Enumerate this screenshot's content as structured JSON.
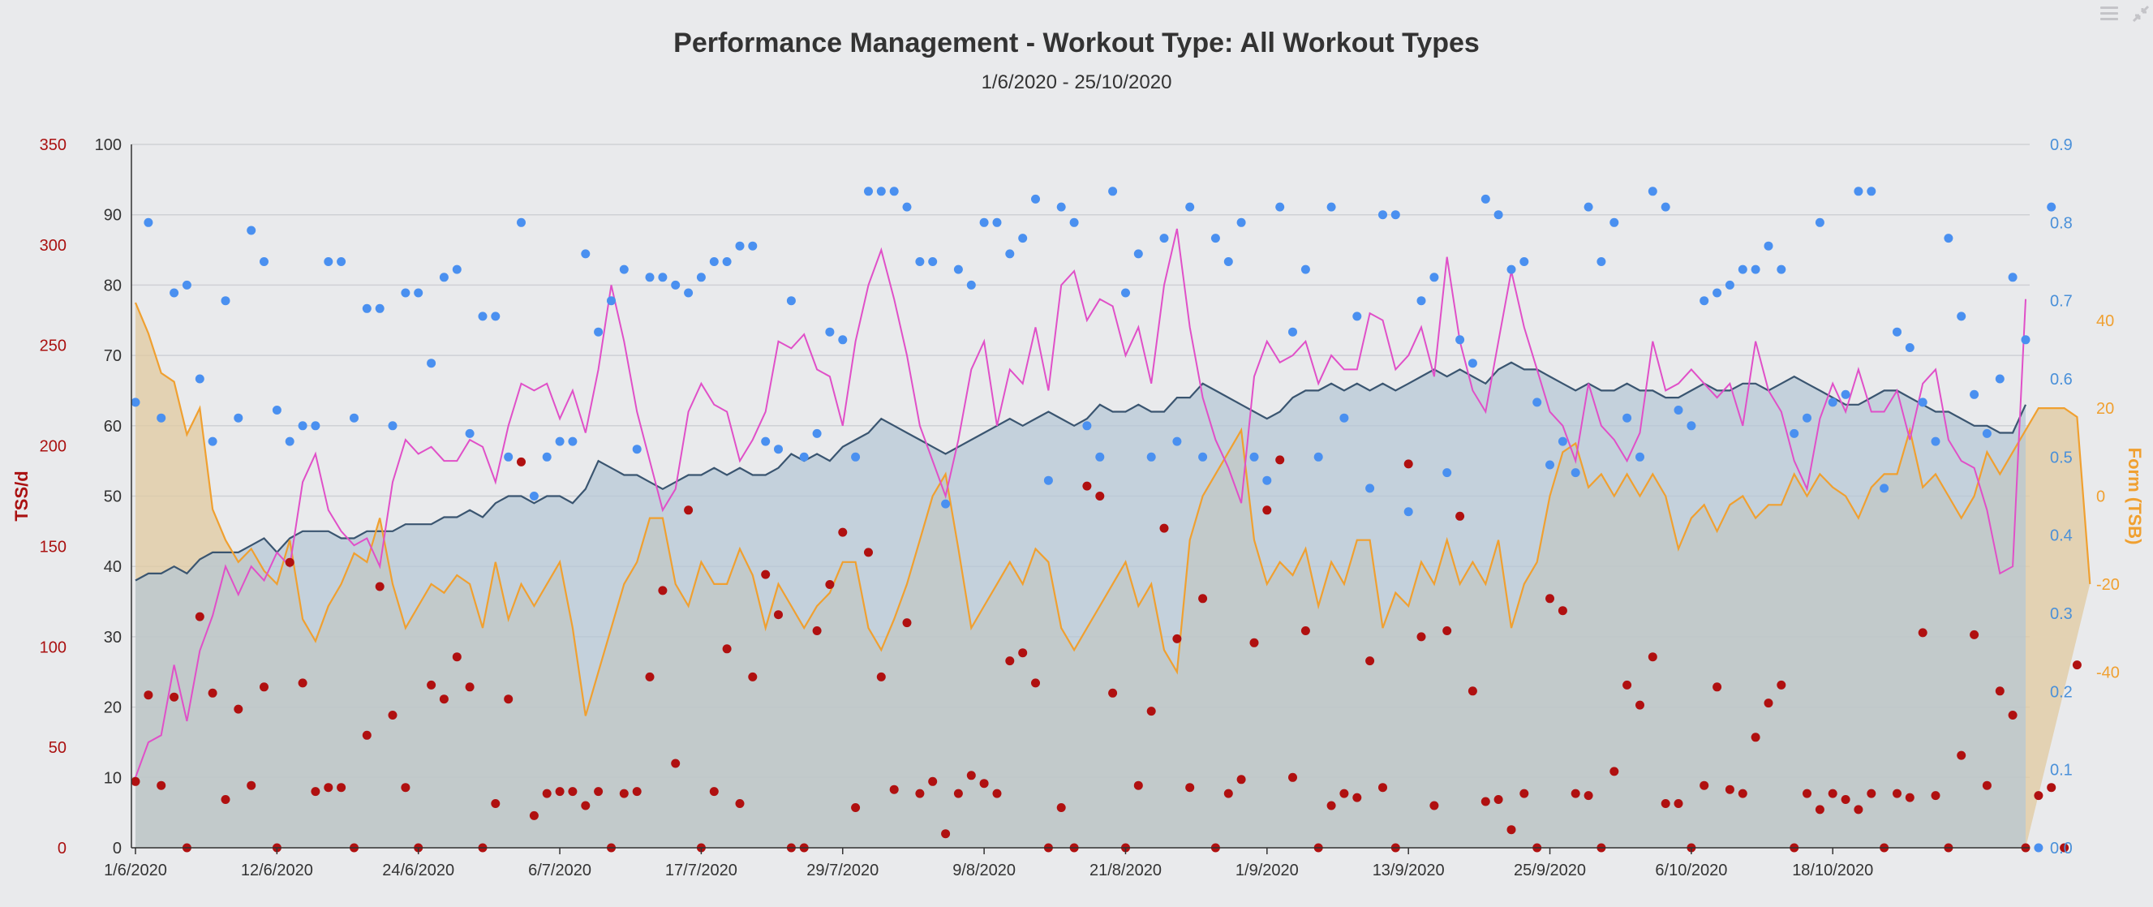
{
  "header": {
    "title": "Performance Management - Workout Type: All Workout Types",
    "subtitle": "1/6/2020 - 25/10/2020",
    "menu_icon": "hamburger-menu-icon",
    "expand_icon": "collapse-arrows-icon"
  },
  "chart_data": {
    "type": "line",
    "x_labels": [
      "1/6/2020",
      "12/6/2020",
      "24/6/2020",
      "6/7/2020",
      "17/7/2020",
      "29/7/2020",
      "9/8/2020",
      "21/8/2020",
      "1/9/2020",
      "13/9/2020",
      "25/9/2020",
      "6/10/2020",
      "18/10/2020"
    ],
    "x_range_days": [
      0,
      147
    ],
    "axes": {
      "tss": {
        "label": "TSS/d",
        "ticks": [
          "0",
          "50",
          "100",
          "150",
          "200",
          "250",
          "300",
          "350"
        ],
        "range": [
          0,
          350
        ],
        "color": "#aa1111"
      },
      "main": {
        "ticks": [
          "0",
          "10",
          "20",
          "30",
          "40",
          "50",
          "60",
          "70",
          "80",
          "90",
          "100"
        ],
        "range": [
          0,
          100
        ],
        "color": "#333333"
      },
      "if": {
        "ticks": [
          "0.0",
          "0.1",
          "0.2",
          "0.3",
          "0.4",
          "0.5",
          "0.6",
          "0.7",
          "0.8",
          "0.9"
        ],
        "range": [
          0,
          0.9
        ],
        "color": "#4a90d9"
      },
      "form": {
        "label": "Form (TSB)",
        "ticks": [
          "-40",
          "-20",
          "0",
          "20",
          "40"
        ],
        "range": [
          -80,
          80
        ],
        "color": "#f0a030"
      }
    },
    "colors": {
      "ctl_fill": "#b4c6d6",
      "ctl_line": "#3a5570",
      "form_fill": "#e0c9a0",
      "form_line": "#f0a030",
      "atl_line": "#e050c8",
      "tss_dot": "#b01010",
      "if_dot": "#4a90f0"
    },
    "grid": true,
    "fitness_ctl": [
      38,
      39,
      39,
      40,
      39,
      41,
      42,
      42,
      42,
      43,
      44,
      42,
      44,
      45,
      45,
      45,
      44,
      44,
      45,
      45,
      45,
      46,
      46,
      46,
      47,
      47,
      48,
      47,
      49,
      50,
      50,
      49,
      50,
      50,
      49,
      51,
      55,
      54,
      53,
      53,
      52,
      51,
      52,
      53,
      53,
      54,
      53,
      54,
      53,
      53,
      54,
      56,
      55,
      56,
      55,
      57,
      58,
      59,
      61,
      60,
      59,
      58,
      57,
      56,
      57,
      58,
      59,
      60,
      61,
      60,
      61,
      62,
      61,
      60,
      61,
      63,
      62,
      62,
      63,
      62,
      62,
      64,
      64,
      66,
      65,
      64,
      63,
      62,
      61,
      62,
      64,
      65,
      65,
      66,
      65,
      66,
      65,
      66,
      65,
      66,
      67,
      68,
      67,
      68,
      67,
      66,
      68,
      69,
      68,
      68,
      67,
      66,
      65,
      66,
      65,
      65,
      66,
      65,
      65,
      64,
      64,
      65,
      66,
      65,
      65,
      66,
      66,
      65,
      66,
      67,
      66,
      65,
      64,
      63,
      63,
      64,
      65,
      65,
      64,
      63,
      62,
      62,
      61,
      60,
      60,
      59,
      59,
      63
    ],
    "fatigue_atl": [
      10,
      15,
      16,
      26,
      18,
      28,
      33,
      40,
      36,
      40,
      38,
      42,
      40,
      52,
      56,
      48,
      45,
      43,
      44,
      40,
      52,
      58,
      56,
      57,
      55,
      55,
      58,
      57,
      52,
      60,
      66,
      65,
      66,
      61,
      65,
      59,
      68,
      80,
      72,
      62,
      55,
      48,
      51,
      62,
      66,
      63,
      62,
      55,
      58,
      62,
      72,
      71,
      73,
      68,
      67,
      60,
      72,
      80,
      85,
      78,
      70,
      60,
      55,
      50,
      58,
      68,
      72,
      60,
      68,
      66,
      74,
      65,
      80,
      82,
      75,
      78,
      77,
      70,
      74,
      66,
      80,
      88,
      74,
      64,
      58,
      54,
      49,
      67,
      72,
      69,
      70,
      72,
      66,
      70,
      68,
      68,
      76,
      75,
      68,
      70,
      74,
      67,
      84,
      72,
      65,
      62,
      72,
      82,
      74,
      68,
      62,
      60,
      55,
      66,
      60,
      58,
      55,
      59,
      72,
      65,
      66,
      68,
      66,
      64,
      66,
      60,
      72,
      65,
      62,
      55,
      51,
      61,
      66,
      62,
      68,
      62,
      62,
      65,
      58,
      66,
      68,
      58,
      55,
      54,
      48,
      39,
      40,
      78
    ],
    "form_tsb": [
      44,
      37,
      28,
      26,
      14,
      20,
      -3,
      -10,
      -15,
      -12,
      -17,
      -20,
      -10,
      -28,
      -33,
      -25,
      -20,
      -13,
      -15,
      -5,
      -20,
      -30,
      -25,
      -20,
      -22,
      -18,
      -20,
      -30,
      -15,
      -28,
      -20,
      -25,
      -20,
      -15,
      -30,
      -50,
      -40,
      -30,
      -20,
      -15,
      -5,
      -5,
      -20,
      -25,
      -15,
      -20,
      -20,
      -12,
      -18,
      -30,
      -20,
      -25,
      -30,
      -25,
      -22,
      -15,
      -15,
      -30,
      -35,
      -28,
      -20,
      -10,
      0,
      5,
      -12,
      -30,
      -25,
      -20,
      -15,
      -20,
      -12,
      -15,
      -30,
      -35,
      -30,
      -25,
      -20,
      -15,
      -25,
      -20,
      -35,
      -40,
      -10,
      0,
      5,
      10,
      15,
      -10,
      -20,
      -15,
      -18,
      -12,
      -25,
      -15,
      -20,
      -10,
      -10,
      -30,
      -22,
      -25,
      -15,
      -20,
      -10,
      -20,
      -15,
      -20,
      -10,
      -30,
      -20,
      -15,
      0,
      10,
      12,
      2,
      5,
      0,
      5,
      0,
      5,
      0,
      -12,
      -5,
      -2,
      -8,
      -2,
      0,
      -5,
      -2,
      -2,
      5,
      0,
      5,
      2,
      0,
      -5,
      2,
      5,
      5,
      15,
      2,
      5,
      0,
      -5,
      0,
      10,
      5,
      10,
      15,
      20,
      20,
      20,
      18,
      -20
    ],
    "tss_per_day": [
      33,
      76,
      31,
      75,
      0,
      115,
      77,
      24,
      69,
      31,
      80,
      0,
      142,
      82,
      28,
      30,
      30,
      0,
      56,
      130,
      66,
      30,
      0,
      81,
      74,
      95,
      80,
      0,
      22,
      74,
      192,
      16,
      27,
      28,
      28,
      21,
      28,
      0,
      27,
      28,
      85,
      128,
      42,
      168,
      0,
      28,
      99,
      22,
      85,
      136,
      116,
      0,
      0,
      108,
      131,
      157,
      20,
      147,
      85,
      29,
      112,
      27,
      33,
      7,
      27,
      36,
      32,
      27,
      93,
      97,
      82,
      0,
      20,
      0,
      180,
      175,
      77,
      0,
      31,
      68,
      159,
      104,
      30,
      124,
      0,
      27,
      34,
      102,
      168,
      193,
      35,
      108,
      0,
      21,
      27,
      25,
      93,
      30,
      0,
      191,
      105,
      21,
      108,
      165,
      78,
      23,
      24,
      9,
      27,
      0,
      124,
      118,
      27,
      26,
      0,
      38,
      81,
      71,
      95,
      22,
      22,
      0,
      31,
      80,
      29,
      27,
      55,
      72,
      81,
      0,
      27,
      19,
      27,
      24,
      19,
      27,
      0,
      27,
      25,
      107,
      26,
      0,
      46,
      106,
      31,
      78,
      66,
      0,
      26,
      30,
      0,
      91
    ],
    "intensity_if": [
      0.57,
      0.8,
      0.55,
      0.71,
      0.72,
      0.6,
      0.52,
      0.7,
      0.55,
      0.79,
      0.75,
      0.56,
      0.52,
      0.54,
      0.54,
      0.75,
      0.75,
      0.55,
      0.69,
      0.69,
      0.54,
      0.71,
      0.71,
      0.62,
      0.73,
      0.74,
      0.53,
      0.68,
      0.68,
      0.5,
      0.8,
      0.45,
      0.5,
      0.52,
      0.52,
      0.76,
      0.66,
      0.7,
      0.74,
      0.51,
      0.73,
      0.73,
      0.72,
      0.71,
      0.73,
      0.75,
      0.75,
      0.77,
      0.77,
      0.52,
      0.51,
      0.7,
      0.5,
      0.53,
      0.66,
      0.65,
      0.5,
      0.84,
      0.84,
      0.84,
      0.82,
      0.75,
      0.75,
      0.44,
      0.74,
      0.72,
      0.8,
      0.8,
      0.76,
      0.78,
      0.83,
      0.47,
      0.82,
      0.8,
      0.54,
      0.5,
      0.84,
      0.71,
      0.76,
      0.5,
      0.78,
      0.52,
      0.82,
      0.5,
      0.78,
      0.75,
      0.8,
      0.5,
      0.47,
      0.82,
      0.66,
      0.74,
      0.5,
      0.82,
      0.55,
      0.68,
      0.46,
      0.81,
      0.81,
      0.43,
      0.7,
      0.73,
      0.48,
      0.65,
      0.62,
      0.83,
      0.81,
      0.74,
      0.75,
      0.57,
      0.49,
      0.52,
      0.48,
      0.82,
      0.75,
      0.8,
      0.55,
      0.5,
      0.84,
      0.82,
      0.56,
      0.54,
      0.7,
      0.71,
      0.72,
      0.74,
      0.74,
      0.77,
      0.74,
      0.53,
      0.55,
      0.8,
      0.57,
      0.58,
      0.84,
      0.84,
      0.46,
      0.66,
      0.64,
      0.57,
      0.52,
      0.78,
      0.68,
      0.58,
      0.53,
      0.6,
      0.73,
      0.65,
      0.0,
      0.82
    ]
  }
}
